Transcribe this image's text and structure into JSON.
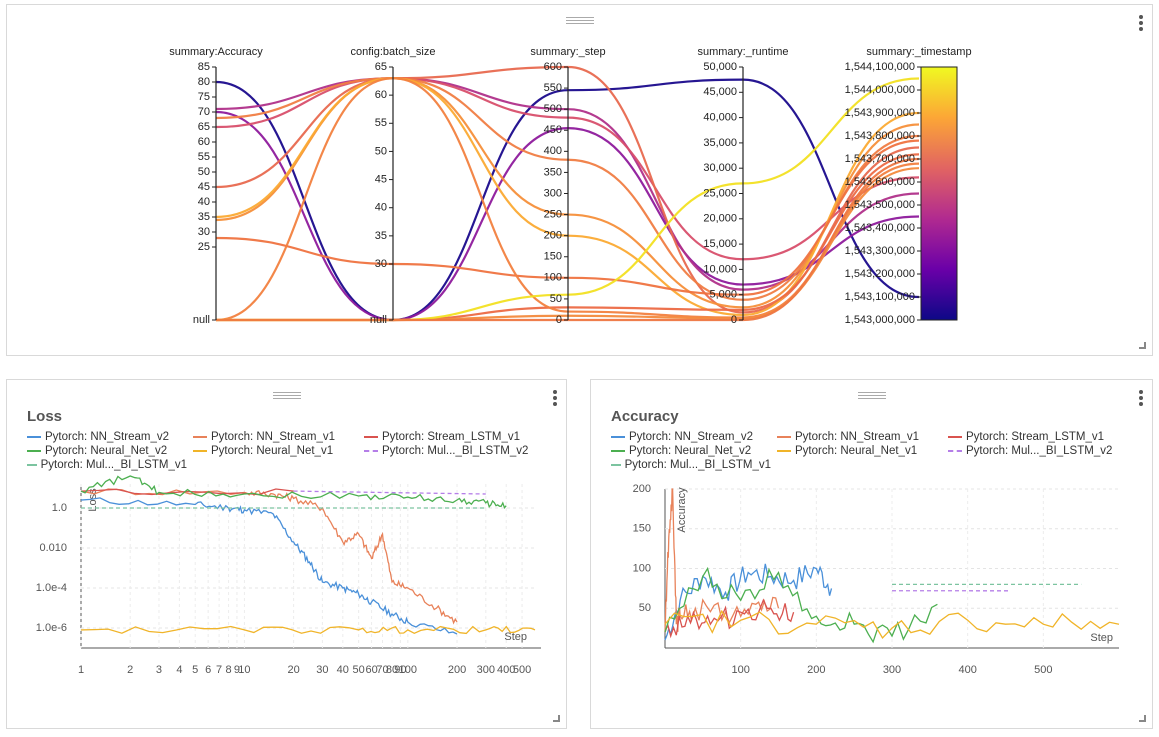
{
  "parcoords": {
    "axes": [
      {
        "label": "summary:Accuracy",
        "ticks": [
          "85",
          "80",
          "75",
          "70",
          "65",
          "60",
          "55",
          "50",
          "45",
          "40",
          "35",
          "30",
          "25"
        ],
        "null_label": "null"
      },
      {
        "label": "config:batch_size",
        "ticks": [
          "65",
          "60",
          "55",
          "50",
          "45",
          "40",
          "35",
          "30"
        ],
        "null_label": "null"
      },
      {
        "label": "summary:_step",
        "ticks": [
          "600",
          "550",
          "500",
          "450",
          "400",
          "350",
          "300",
          "250",
          "200",
          "150",
          "100",
          "50",
          "0"
        ]
      },
      {
        "label": "summary:_runtime",
        "ticks": [
          "50,000",
          "45,000",
          "40,000",
          "35,000",
          "30,000",
          "25,000",
          "20,000",
          "15,000",
          "10,000",
          "5,000",
          "0"
        ]
      },
      {
        "label": "summary:_timestamp",
        "ticks": [
          "1,544,100,000",
          "1,544,000,000",
          "1,543,900,000",
          "1,543,800,000",
          "1,543,700,000",
          "1,543,600,000",
          "1,543,500,000",
          "1,543,400,000",
          "1,543,300,000",
          "1,543,200,000",
          "1,543,100,000",
          "1,543,000,000"
        ]
      }
    ],
    "colorscale": [
      "#0d0887",
      "#6a00a8",
      "#b12a90",
      "#e16462",
      "#fca636",
      "#f0f921"
    ]
  },
  "loss_panel": {
    "title": "Loss",
    "legend": [
      {
        "name": "Pytorch: NN_Stream_v2",
        "color": "#4a90d9",
        "dashed": false
      },
      {
        "name": "Pytorch: NN_Stream_v1",
        "color": "#e8825a",
        "dashed": false
      },
      {
        "name": "Pytorch: Stream_LSTM_v1",
        "color": "#d9534f",
        "dashed": false
      },
      {
        "name": "Pytorch: Neural_Net_v2",
        "color": "#4caf50",
        "dashed": false
      },
      {
        "name": "Pytorch: Neural_Net_v1",
        "color": "#f0b429",
        "dashed": false
      },
      {
        "name": "Pytorch: Mul..._BI_LSTM_v2",
        "color": "#b57ee8",
        "dashed": true
      },
      {
        "name": "Pytorch: Mul..._BI_LSTM_v1",
        "color": "#7cc4a0",
        "dashed": true
      }
    ],
    "ylabel": "Loss",
    "xlabel": "Step",
    "y_ticks": [
      "1.0",
      "0.010",
      "1.0e-4",
      "1.0e-6"
    ],
    "x_ticks": [
      "1",
      "2",
      "3",
      "4",
      "5",
      "6",
      "7",
      "8",
      "9",
      "10",
      "20",
      "30",
      "40",
      "50",
      "60",
      "70",
      "80",
      "90",
      "100",
      "200",
      "300",
      "400",
      "500"
    ]
  },
  "accuracy_panel": {
    "title": "Accuracy",
    "legend": [
      {
        "name": "Pytorch: NN_Stream_v2",
        "color": "#4a90d9",
        "dashed": false
      },
      {
        "name": "Pytorch: NN_Stream_v1",
        "color": "#e8825a",
        "dashed": false
      },
      {
        "name": "Pytorch: Stream_LSTM_v1",
        "color": "#d9534f",
        "dashed": false
      },
      {
        "name": "Pytorch: Neural_Net_v2",
        "color": "#4caf50",
        "dashed": false
      },
      {
        "name": "Pytorch: Neural_Net_v1",
        "color": "#f0b429",
        "dashed": false
      },
      {
        "name": "Pytorch: Mul..._BI_LSTM_v2",
        "color": "#b57ee8",
        "dashed": true
      },
      {
        "name": "Pytorch: Mul..._BI_LSTM_v1",
        "color": "#7cc4a0",
        "dashed": true
      }
    ],
    "ylabel": "Accuracy",
    "xlabel": "Step",
    "y_ticks": [
      "200",
      "150",
      "100",
      "50"
    ],
    "x_ticks": [
      "100",
      "200",
      "300",
      "400",
      "500"
    ]
  },
  "chart_data": [
    {
      "type": "parallel_coordinates",
      "dimensions": [
        "summary:Accuracy",
        "config:batch_size",
        "summary:_step",
        "summary:_runtime",
        "summary:_timestamp"
      ],
      "ranges": [
        [
          25,
          85
        ],
        [
          30,
          65
        ],
        [
          0,
          600
        ],
        [
          0,
          50000
        ],
        [
          1543000000,
          1544100000
        ]
      ],
      "color_by": "summary:_timestamp",
      "lines": [
        {
          "values": [
            80,
            null,
            545,
            47500,
            1543100000
          ],
          "color": "#1a0a8c"
        },
        {
          "values": [
            70,
            null,
            455,
            7000,
            1543450000
          ],
          "color": "#8e1a9c"
        },
        {
          "values": [
            71,
            63,
            500,
            6000,
            1543550000
          ],
          "color": "#b0308a"
        },
        {
          "values": [
            65,
            63,
            480,
            12000,
            1543620000
          ],
          "color": "#d84f6c"
        },
        {
          "values": [
            45,
            63,
            600,
            1500,
            1543750000
          ],
          "color": "#e8694f"
        },
        {
          "values": [
            68,
            63,
            380,
            4000,
            1543800000
          ],
          "color": "#f07d43"
        },
        {
          "values": [
            34,
            63,
            250,
            2500,
            1543850000
          ],
          "color": "#f68f3a"
        },
        {
          "values": [
            35,
            63,
            200,
            1000,
            1543900000
          ],
          "color": "#fbaa33"
        },
        {
          "values": [
            28,
            30,
            100,
            5000,
            1543780000
          ],
          "color": "#ef7340"
        },
        {
          "values": [
            null,
            null,
            30,
            2000,
            1543720000
          ],
          "color": "#ec6a45"
        },
        {
          "values": [
            null,
            63,
            20,
            500,
            1543680000
          ],
          "color": "#f2813f"
        },
        {
          "values": [
            null,
            null,
            10,
            300,
            1543660000
          ],
          "color": "#f38a3d"
        },
        {
          "values": [
            null,
            null,
            60,
            27000,
            1544050000
          ],
          "color": "#f2e022"
        },
        {
          "values": [
            null,
            null,
            0,
            0,
            1543700000
          ],
          "color": "#ee7742"
        }
      ]
    },
    {
      "type": "line",
      "title": "Loss",
      "xlabel": "Step",
      "ylabel": "Loss",
      "xscale": "log",
      "yscale": "log",
      "xlim": [
        1,
        600
      ],
      "series": [
        {
          "name": "Pytorch: NN_Stream_v2",
          "x": [
            1,
            5,
            8,
            10,
            15,
            20,
            25,
            30,
            40,
            50,
            60,
            80,
            100,
            200
          ],
          "y": [
            2.5,
            1.5,
            1.0,
            0.8,
            0.5,
            0.02,
            0.002,
            0.0002,
            0.0001,
            5e-05,
            2e-05,
            5e-06,
            2e-06,
            5e-07
          ]
        },
        {
          "name": "Pytorch: NN_Stream_v1",
          "x": [
            1,
            10,
            15,
            20,
            30,
            40,
            50,
            60,
            70,
            80,
            100,
            150,
            200
          ],
          "y": [
            7,
            6,
            5,
            3,
            1,
            0.02,
            0.05,
            0.003,
            0.05,
            0.0002,
            0.0001,
            1e-05,
            2e-06
          ]
        },
        {
          "name": "Pytorch: Stream_LSTM_v1",
          "x": [
            1,
            20
          ],
          "y": [
            7,
            7
          ]
        },
        {
          "name": "Pytorch: Neural_Net_v2",
          "x": [
            1,
            2,
            3,
            10,
            50,
            100,
            200,
            300,
            400
          ],
          "y": [
            7,
            40,
            6,
            5,
            4,
            3.5,
            2.5,
            1.8,
            1.3
          ]
        },
        {
          "name": "Pytorch: Neural_Net_v1",
          "x": [
            1,
            10,
            50,
            100,
            300,
            600
          ],
          "y": [
            8e-07,
            8e-07,
            8e-07,
            8e-07,
            8e-07,
            8e-07
          ]
        },
        {
          "name": "Pytorch: Mul..._BI_LSTM_v2",
          "x": [
            20,
            300
          ],
          "y": [
            7,
            5
          ]
        },
        {
          "name": "Pytorch: Mul..._BI_LSTM_v1",
          "x": [
            1,
            20,
            300
          ],
          "y": [
            1,
            1,
            1
          ]
        }
      ]
    },
    {
      "type": "line",
      "title": "Accuracy",
      "xlabel": "Step",
      "ylabel": "Accuracy",
      "xlim": [
        0,
        600
      ],
      "ylim": [
        0,
        200
      ],
      "series": [
        {
          "name": "Pytorch: NN_Stream_v2",
          "x": [
            0,
            20,
            50,
            80,
            110,
            140,
            170,
            200,
            220
          ],
          "y": [
            10,
            60,
            90,
            70,
            95,
            90,
            85,
            100,
            75
          ]
        },
        {
          "name": "Pytorch: NN_Stream_v1",
          "x": [
            0,
            5,
            10,
            15,
            20,
            40,
            80,
            120,
            150
          ],
          "y": [
            20,
            140,
            200,
            30,
            40,
            50,
            45,
            55,
            50
          ]
        },
        {
          "name": "Pytorch: Stream_LSTM_v1",
          "x": [
            0,
            30,
            60,
            100,
            140,
            170
          ],
          "y": [
            20,
            40,
            30,
            45,
            50,
            45
          ]
        },
        {
          "name": "Pytorch: Neural_Net_v2",
          "x": [
            0,
            50,
            100,
            150,
            200,
            250,
            300,
            360
          ],
          "y": [
            20,
            90,
            60,
            95,
            40,
            30,
            15,
            55
          ]
        },
        {
          "name": "Pytorch: Neural_Net_v1",
          "x": [
            0,
            100,
            200,
            300,
            400,
            500,
            600
          ],
          "y": [
            30,
            35,
            30,
            25,
            35,
            30,
            30
          ]
        },
        {
          "name": "Pytorch: Mul..._BI_LSTM_v2",
          "x": [
            300,
            455
          ],
          "y": [
            72,
            72
          ]
        },
        {
          "name": "Pytorch: Mul..._BI_LSTM_v1",
          "x": [
            300,
            550
          ],
          "y": [
            80,
            80
          ]
        }
      ]
    }
  ]
}
